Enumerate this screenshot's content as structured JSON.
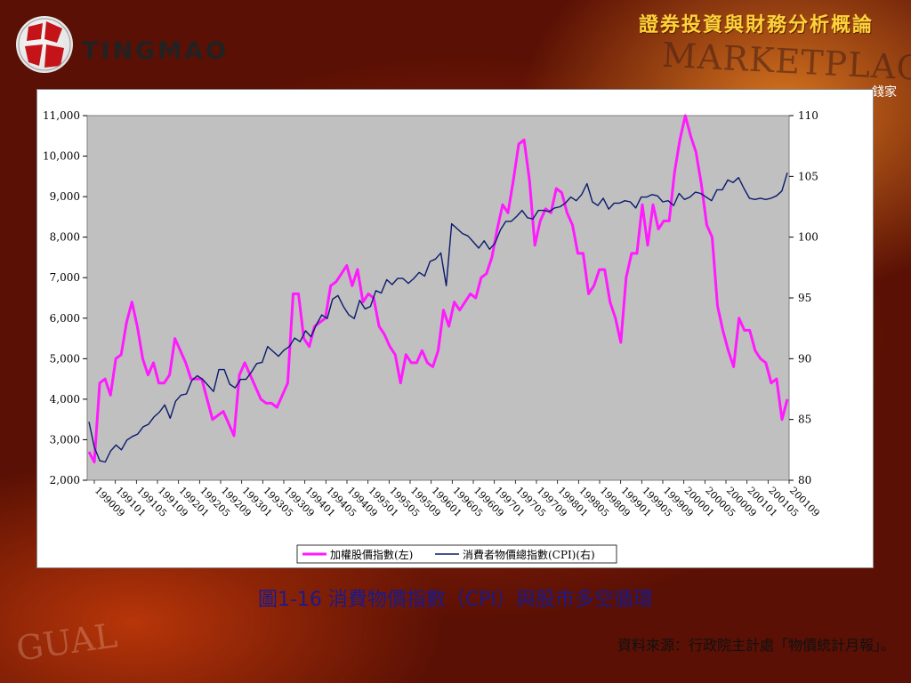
{
  "header": {
    "title": "證券投資與財務分析概論"
  },
  "logo": {
    "name": "TINGMAO"
  },
  "side_note": "錢家",
  "caption": "圖1-16 消費物價指數（CPI）與股市多空循環",
  "source": "資料來源：行政院主計處「物價統計月報」。",
  "chart_data": {
    "type": "line",
    "left_axis": {
      "min": 2000,
      "max": 11000,
      "ticks": [
        "11,000",
        "10,000",
        "9,000",
        "8,000",
        "7,000",
        "6,000",
        "5,000",
        "4,000",
        "3,000",
        "2,000"
      ]
    },
    "right_axis": {
      "min": 80,
      "max": 110,
      "ticks": [
        "110",
        "105",
        "100",
        "95",
        "90",
        "85",
        "80"
      ]
    },
    "x_tick_labels": [
      "199009",
      "199101",
      "199105",
      "199109",
      "199201",
      "199205",
      "199209",
      "199301",
      "199305",
      "199309",
      "199401",
      "199405",
      "199409",
      "199501",
      "199505",
      "199509",
      "199601",
      "199605",
      "199609",
      "199701",
      "199705",
      "199709",
      "199801",
      "199805",
      "199809",
      "199901",
      "199905",
      "199909",
      "200001",
      "200005",
      "200009",
      "200101",
      "200105",
      "200109"
    ],
    "series": [
      {
        "name": "加權股價指數(左)",
        "axis": "left",
        "color": "#ff1aff",
        "values": [
          2700,
          2450,
          4400,
          4500,
          4100,
          5000,
          5100,
          5900,
          6400,
          5800,
          5000,
          4600,
          4900,
          4400,
          4400,
          4600,
          5500,
          5200,
          4900,
          4500,
          4500,
          4500,
          4000,
          3500,
          3600,
          3700,
          3400,
          3100,
          4600,
          4900,
          4600,
          4300,
          4000,
          3900,
          3900,
          3800,
          4100,
          4400,
          6600,
          6600,
          5500,
          5300,
          5800,
          5900,
          6000,
          6800,
          6900,
          7100,
          7300,
          6800,
          7200,
          6400,
          6600,
          6500,
          5800,
          5600,
          5300,
          5100,
          4400,
          5100,
          4900,
          4900,
          5200,
          4900,
          4800,
          5200,
          6200,
          5800,
          6400,
          6200,
          6400,
          6600,
          6500,
          7000,
          7100,
          7500,
          8200,
          8800,
          8600,
          9400,
          10300,
          10400,
          9400,
          7800,
          8400,
          8700,
          8600,
          9200,
          9100,
          8600,
          8300,
          7600,
          7600,
          6600,
          6800,
          7200,
          7200,
          6400,
          6000,
          5400,
          7000,
          7600,
          7600,
          8800,
          7800,
          8800,
          8200,
          8400,
          8400,
          9600,
          10400,
          11000,
          10500,
          10100,
          9300,
          8300,
          8000,
          6300,
          5700,
          5200,
          4800,
          6000,
          5700,
          5700,
          5200,
          5000,
          4900,
          4400,
          4500,
          3500,
          4000
        ]
      },
      {
        "name": "消費者物價總指數(CPI)(右)",
        "axis": "right",
        "color": "#0a1a6e",
        "values": [
          84.8,
          82.7,
          81.6,
          81.5,
          82.4,
          82.9,
          82.5,
          83.3,
          83.6,
          83.8,
          84.4,
          84.6,
          85.2,
          85.6,
          86.2,
          85.1,
          86.5,
          87.0,
          87.1,
          88.2,
          88.6,
          88.3,
          87.8,
          87.3,
          89.1,
          89.1,
          87.9,
          87.6,
          88.3,
          88.3,
          88.9,
          89.6,
          89.7,
          91.0,
          90.6,
          90.2,
          90.7,
          91.0,
          91.7,
          91.4,
          92.3,
          91.8,
          92.8,
          93.6,
          93.3,
          94.9,
          95.2,
          94.3,
          93.6,
          93.3,
          94.8,
          94.1,
          94.3,
          95.6,
          95.4,
          96.5,
          96.1,
          96.6,
          96.6,
          96.2,
          96.6,
          97.1,
          96.8,
          98.0,
          98.2,
          98.7,
          96.0,
          101.1,
          100.7,
          100.3,
          100.1,
          99.6,
          99.1,
          99.7,
          99.0,
          99.5,
          100.6,
          101.3,
          101.3,
          101.7,
          102.2,
          101.6,
          101.5,
          102.2,
          102.2,
          102.1,
          102.4,
          102.5,
          102.8,
          103.3,
          103.0,
          103.5,
          104.4,
          102.9,
          102.6,
          103.2,
          102.3,
          102.8,
          102.8,
          103.0,
          102.9,
          102.4,
          103.3,
          103.3,
          103.5,
          103.4,
          102.9,
          103.0,
          102.6,
          103.6,
          103.1,
          103.3,
          103.7,
          103.6,
          103.3,
          103.0,
          103.9,
          103.9,
          104.7,
          104.5,
          104.9,
          104.0,
          103.2,
          103.1,
          103.2,
          103.1,
          103.2,
          103.4,
          103.8,
          105.3
        ]
      }
    ],
    "legend_position": "bottom-center",
    "grid": false
  }
}
